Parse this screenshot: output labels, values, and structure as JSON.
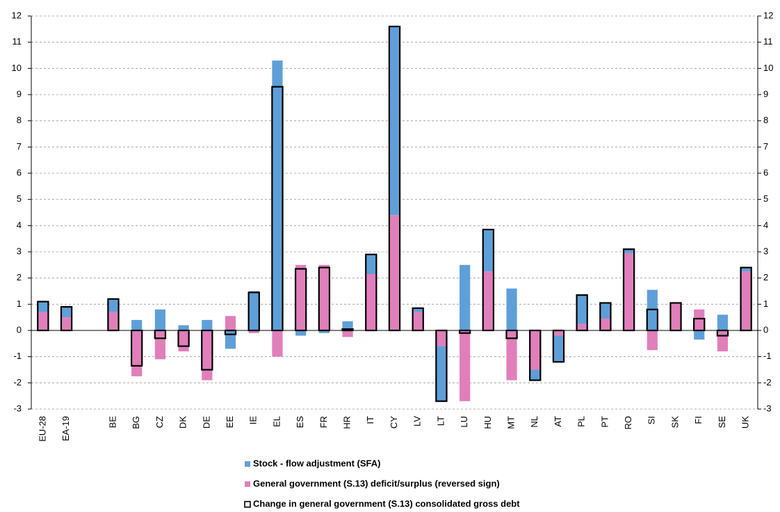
{
  "chart_data": {
    "type": "bar",
    "categories": [
      "EU-28",
      "EA-19",
      null,
      "BE",
      "BG",
      "CZ",
      "DK",
      "DE",
      "EE",
      "IE",
      "EL",
      "ES",
      "FR",
      "HR",
      "IT",
      "CY",
      "LV",
      "LT",
      "LU",
      "HU",
      "MT",
      "NL",
      "AT",
      "PL",
      "PT",
      "RO",
      "SI",
      "SK",
      "FI",
      "SE",
      "UK"
    ],
    "series": [
      {
        "name": "General government (S.13) deficit/surplus (reversed sign)",
        "color": "#e07fba",
        "style": "fill",
        "values": [
          0.7,
          0.5,
          null,
          0.7,
          -1.75,
          -1.1,
          -0.8,
          -1.9,
          0.55,
          -0.1,
          -1.0,
          2.5,
          2.5,
          -0.25,
          2.15,
          4.4,
          0.7,
          -0.6,
          -2.7,
          2.25,
          -1.9,
          -1.5,
          -0.2,
          0.25,
          0.45,
          2.95,
          -0.75,
          1.05,
          0.8,
          -0.8,
          2.25
        ]
      },
      {
        "name": "Stock - flow adjustment (SFA)",
        "color": "#5f9fd8",
        "style": "fill",
        "values": [
          0.4,
          0.4,
          null,
          0.5,
          0.4,
          0.8,
          0.2,
          0.4,
          -0.7,
          1.5,
          10.3,
          -0.2,
          -0.1,
          0.35,
          0.75,
          7.2,
          0.15,
          -2.1,
          2.5,
          1.6,
          1.6,
          -0.4,
          -1.0,
          1.1,
          0.6,
          0.15,
          1.55,
          0.0,
          -0.35,
          0.6,
          0.15
        ]
      },
      {
        "name": "Change in general government (S.13) consolidated gross debt",
        "color": "#000000",
        "style": "outline",
        "values": [
          1.1,
          0.9,
          null,
          1.2,
          -1.35,
          -0.3,
          -0.6,
          -1.5,
          -0.15,
          1.45,
          9.3,
          2.35,
          2.4,
          0.05,
          2.9,
          11.6,
          0.85,
          -2.7,
          -0.1,
          3.85,
          -0.3,
          -1.9,
          -1.2,
          1.35,
          1.05,
          3.1,
          0.8,
          1.05,
          0.45,
          -0.2,
          2.4
        ]
      }
    ],
    "ylim": [
      -3,
      12
    ],
    "yticks": [
      -3,
      -2,
      -1,
      0,
      1,
      2,
      3,
      4,
      5,
      6,
      7,
      8,
      9,
      10,
      11,
      12
    ],
    "y2lim": [
      -3,
      12
    ],
    "y2ticks": [
      -3,
      -2,
      -1,
      0,
      1,
      2,
      3,
      4,
      5,
      6,
      7,
      8,
      9,
      10,
      11,
      12
    ],
    "grid": true
  }
}
